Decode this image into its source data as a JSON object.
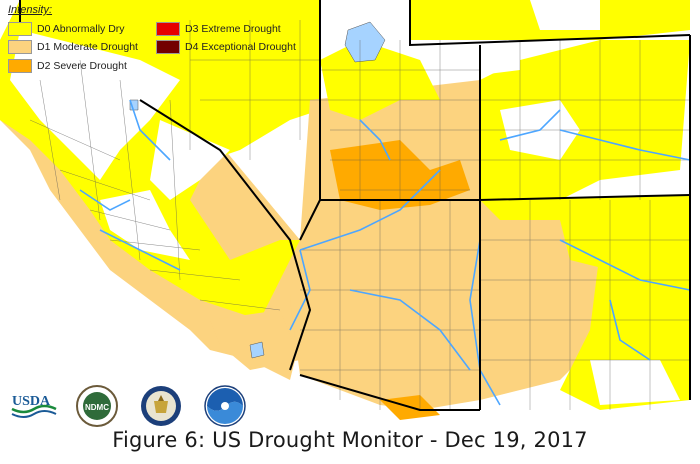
{
  "legend": {
    "title": "Intensity:",
    "items": [
      {
        "label": "D0 Abnormally Dry",
        "color": "#ffff00"
      },
      {
        "label": "D1 Moderate Drought",
        "color": "#fcd37f"
      },
      {
        "label": "D2 Severe Drought",
        "color": "#ffaa00"
      },
      {
        "label": "D3 Extreme Drought",
        "color": "#e60000"
      },
      {
        "label": "D4 Exceptional Drought",
        "color": "#730000"
      }
    ]
  },
  "logos": {
    "usda": "USDA",
    "ndmc": "NDMC"
  },
  "caption": "Figure 6: US Drought Monitor - Dec 19, 2017",
  "colors": {
    "water": "#4da6ff",
    "lake": "#a6d3ff",
    "county_line": "#555555",
    "state_line": "#000000"
  }
}
